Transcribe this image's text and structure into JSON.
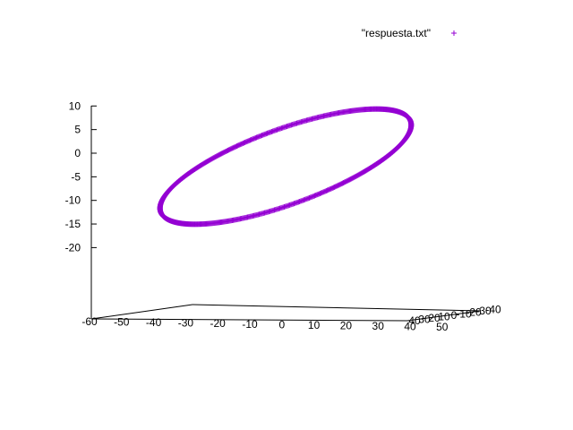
{
  "chart_data": {
    "type": "scatter",
    "plot_style": "3d",
    "title": "",
    "xlabel": "",
    "ylabel": "",
    "zlabel": "",
    "grid": false,
    "legend_position": "top-right",
    "series": [
      {
        "name": "\"respuesta.txt\"",
        "marker": "plus",
        "color": "#9400d3",
        "curve": "closed-ellipse",
        "point_count": 720
      }
    ],
    "x_axis": {
      "range": [
        -60,
        50
      ],
      "ticks": [
        "-60",
        "-50",
        "-40",
        "-30",
        "-20",
        "-10",
        "0",
        "10",
        "20",
        "30",
        "40",
        "50"
      ]
    },
    "y_axis": {
      "range": [
        -40,
        40
      ],
      "ticks": [
        "40",
        "30",
        "20",
        "10",
        "0",
        "-10",
        "-20",
        "-30",
        "-40"
      ]
    },
    "z_axis": {
      "range": [
        -25,
        10
      ],
      "ticks": [
        "10",
        "5",
        "0",
        "-5",
        "-10",
        "-15",
        "-20"
      ]
    }
  }
}
